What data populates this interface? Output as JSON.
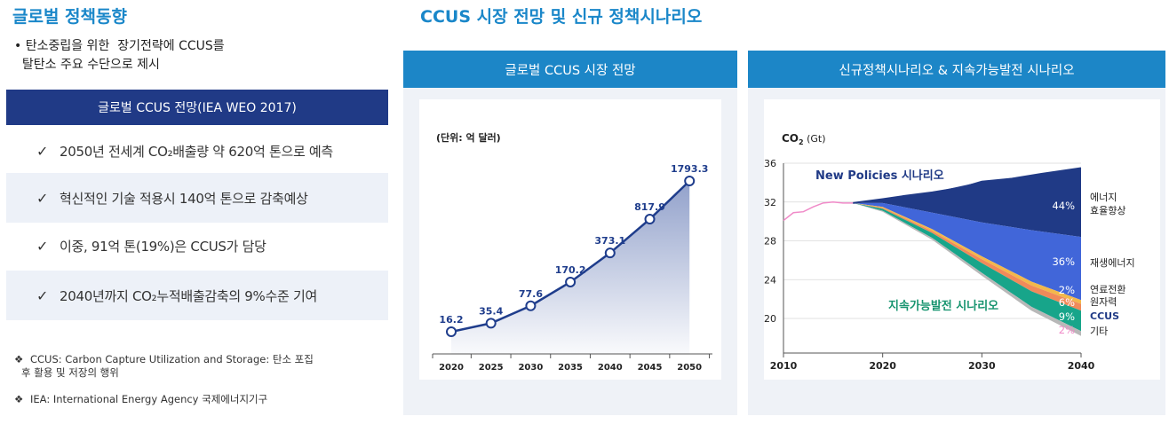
{
  "left": {
    "title": "글로벌 정책동향",
    "intro_line1": "• 탄소중립을 위한  장기전략에 CCUS를",
    "intro_line2": "  탈탄소 주요 수단으로 제시",
    "outlook_header": "글로벌 CCUS 전망(IEA WEO 2017)",
    "facts": [
      {
        "check": "✓",
        "text": "2050년 전세계 CO₂배출량 약 620억 톤으로 예측"
      },
      {
        "check": "✓",
        "text": "혁신적인 기술 적용시 140억 톤으로 감축예상"
      },
      {
        "check": "✓",
        "text": "이중, 91억 톤(19%)은 CCUS가 담당"
      },
      {
        "check": "✓",
        "text": "2040년까지 CO₂누적배출감축의 9%수준 기여"
      }
    ],
    "footnotes": [
      {
        "bullet": "❖",
        "line1": "CCUS: Carbon Capture Utilization and Storage: 탄소 포집",
        "line2": "후 활용 및 저장의 행위"
      },
      {
        "bullet": "❖",
        "line1": "IEA: International Energy Agency 국제에너지기구",
        "line2": ""
      }
    ]
  },
  "main_title": "CCUS 시장 전망 및 신규 정책시나리오",
  "market_panel": {
    "header": "글로벌 CCUS 시장 전망"
  },
  "scenario_panel": {
    "header": "신규정책시나리오 & 지속가능발전 시나리오"
  },
  "chart_data": [
    {
      "type": "line",
      "title": "",
      "unit_label": "(단위: 억 달러)",
      "categories": [
        "2020",
        "2025",
        "2030",
        "2035",
        "2040",
        "2045",
        "2050"
      ],
      "values": [
        16.2,
        35.4,
        77.6,
        170.2,
        373.1,
        817.9,
        1793.3
      ],
      "value_labels": [
        "16.2",
        "35.4",
        "77.6",
        "170.2",
        "373.1",
        "817.9",
        "1793.3"
      ],
      "grid": false,
      "colors": {
        "line": "#1f3d8c",
        "area": "#8c9cc8"
      }
    },
    {
      "type": "area",
      "ylabel_main": "CO",
      "ylabel_sub": "2",
      "ylabel_unit": "(Gt)",
      "x_ticks": [
        "2010",
        "2020",
        "2030",
        "2040"
      ],
      "y_ticks": [
        "36",
        "32",
        "28",
        "24",
        "20"
      ],
      "xlim": [
        2010,
        2040
      ],
      "ylim": [
        17,
        36
      ],
      "grid": true,
      "history": {
        "x": [
          2010,
          2011,
          2012,
          2013,
          2014,
          2015,
          2016,
          2017
        ],
        "y": [
          30.1,
          30.9,
          31.0,
          31.5,
          31.9,
          32.0,
          31.9,
          31.9
        ]
      },
      "new_policies": {
        "label_en": "New Policies",
        "label_ko": "시나리오",
        "x": [
          2017,
          2020,
          2022,
          2025,
          2028,
          2030,
          2033,
          2036,
          2040
        ],
        "y": [
          31.9,
          32.3,
          32.6,
          33.0,
          33.5,
          34.1,
          34.4,
          34.9,
          35.5
        ]
      },
      "band_boundaries": {
        "x": [
          2017,
          2020,
          2025,
          2030,
          2035,
          2040
        ],
        "efficiency_lower": [
          31.9,
          31.9,
          30.9,
          29.9,
          29.1,
          28.4
        ],
        "renewables_lower": [
          31.9,
          31.5,
          29.2,
          26.4,
          23.8,
          21.9
        ],
        "fuel_switch_lower": [
          31.9,
          31.4,
          29.0,
          26.1,
          23.4,
          21.5
        ],
        "nuclear_lower": [
          31.9,
          31.3,
          28.8,
          25.7,
          22.8,
          20.8
        ],
        "ccus_lower": [
          31.9,
          31.1,
          28.3,
          24.7,
          21.2,
          18.7
        ],
        "other_lower": [
          31.9,
          31.0,
          28.1,
          24.4,
          20.8,
          18.2
        ]
      },
      "sustainable_label": "지속가능발전 시나리오",
      "bands": [
        {
          "name": "에너지 효율향상",
          "line1": "에너지",
          "line2": "효율향상",
          "pct": "44%",
          "color": "#203a86"
        },
        {
          "name": "재생에너지",
          "line1": "재생에너지",
          "line2": "",
          "pct": "36%",
          "color": "#4166d9"
        },
        {
          "name": "연료전환",
          "line1": "연료전환",
          "line2": "",
          "pct": "2%",
          "color": "#f2b84b"
        },
        {
          "name": "원자력",
          "line1": "원자력",
          "line2": "",
          "pct": "6%",
          "color": "#f08a5a"
        },
        {
          "name": "CCUS",
          "line1": "CCUS",
          "line2": "",
          "pct": "9%",
          "color": "#17a58a"
        },
        {
          "name": "기타",
          "line1": "기타",
          "line2": "",
          "pct": "2%",
          "color": "#b8b8b8"
        }
      ],
      "colors": {
        "history": "#f08ac8",
        "new_policies_label": "#203a86",
        "sustainable_label": "#17946f"
      }
    }
  ]
}
